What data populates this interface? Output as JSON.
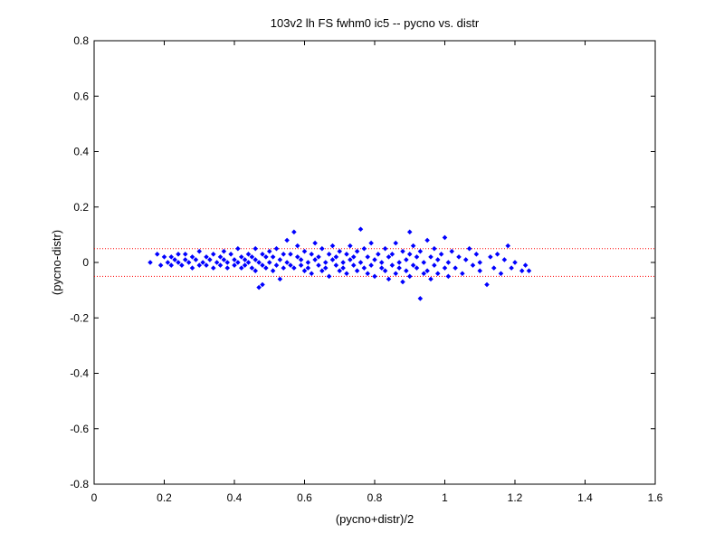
{
  "chart_data": {
    "type": "scatter",
    "title": "103v2 lh FS fwhm0 ic5 -- pycno vs. distr",
    "xlabel": "(pycno+distr)/2",
    "ylabel": "(pycno-distr)",
    "xlim": [
      0,
      1.6
    ],
    "ylim": [
      -0.8,
      0.8
    ],
    "xticks": [
      0,
      0.2,
      0.4,
      0.6,
      0.8,
      1,
      1.2,
      1.4,
      1.6
    ],
    "yticks": [
      -0.8,
      -0.6,
      -0.4,
      -0.2,
      0,
      0.2,
      0.4,
      0.6,
      0.8
    ],
    "xtick_labels": [
      "0",
      "0.2",
      "0.4",
      "0.6",
      "0.8",
      "1",
      "1.2",
      "1.4",
      "1.6"
    ],
    "ytick_labels": [
      "-0.8",
      "-0.6",
      "-0.4",
      "-0.2",
      "0",
      "0.2",
      "0.4",
      "0.6",
      "0.8"
    ],
    "grid": false,
    "reference_lines": [
      {
        "y": 0.05,
        "color": "#ff0000",
        "style": "dotted"
      },
      {
        "y": -0.05,
        "color": "#ff0000",
        "style": "dotted"
      }
    ],
    "series": [
      {
        "color": "#0000ff",
        "marker": "diamond",
        "points": [
          [
            0.16,
            0.0
          ],
          [
            0.18,
            0.03
          ],
          [
            0.19,
            -0.01
          ],
          [
            0.2,
            0.02
          ],
          [
            0.21,
            0.0
          ],
          [
            0.22,
            -0.01
          ],
          [
            0.22,
            0.02
          ],
          [
            0.23,
            0.01
          ],
          [
            0.24,
            0.0
          ],
          [
            0.24,
            0.03
          ],
          [
            0.25,
            -0.01
          ],
          [
            0.26,
            0.01
          ],
          [
            0.26,
            0.03
          ],
          [
            0.27,
            0.0
          ],
          [
            0.28,
            -0.02
          ],
          [
            0.28,
            0.02
          ],
          [
            0.29,
            0.01
          ],
          [
            0.3,
            0.04
          ],
          [
            0.3,
            -0.01
          ],
          [
            0.31,
            0.0
          ],
          [
            0.32,
            0.02
          ],
          [
            0.32,
            -0.01
          ],
          [
            0.33,
            0.01
          ],
          [
            0.34,
            0.03
          ],
          [
            0.34,
            -0.02
          ],
          [
            0.35,
            0.0
          ],
          [
            0.36,
            0.02
          ],
          [
            0.36,
            -0.01
          ],
          [
            0.37,
            0.04
          ],
          [
            0.37,
            0.01
          ],
          [
            0.38,
            -0.02
          ],
          [
            0.38,
            0.0
          ],
          [
            0.39,
            0.03
          ],
          [
            0.4,
            0.01
          ],
          [
            0.4,
            -0.01
          ],
          [
            0.41,
            0.05
          ],
          [
            0.41,
            0.0
          ],
          [
            0.42,
            -0.02
          ],
          [
            0.42,
            0.02
          ],
          [
            0.43,
            0.01
          ],
          [
            0.43,
            -0.01
          ],
          [
            0.44,
            0.03
          ],
          [
            0.44,
            0.0
          ],
          [
            0.45,
            -0.02
          ],
          [
            0.45,
            0.02
          ],
          [
            0.46,
            0.05
          ],
          [
            0.46,
            0.01
          ],
          [
            0.46,
            -0.03
          ],
          [
            0.47,
            0.0
          ],
          [
            0.47,
            -0.09
          ],
          [
            0.48,
            0.03
          ],
          [
            0.48,
            -0.01
          ],
          [
            0.48,
            -0.08
          ],
          [
            0.49,
            0.02
          ],
          [
            0.49,
            -0.02
          ],
          [
            0.5,
            0.04
          ],
          [
            0.5,
            0.0
          ],
          [
            0.51,
            -0.03
          ],
          [
            0.51,
            0.02
          ],
          [
            0.52,
            -0.01
          ],
          [
            0.52,
            0.05
          ],
          [
            0.53,
            0.01
          ],
          [
            0.53,
            -0.06
          ],
          [
            0.54,
            0.03
          ],
          [
            0.54,
            -0.02
          ],
          [
            0.55,
            0.0
          ],
          [
            0.55,
            0.08
          ],
          [
            0.56,
            -0.01
          ],
          [
            0.56,
            0.03
          ],
          [
            0.57,
            0.11
          ],
          [
            0.57,
            -0.02
          ],
          [
            0.58,
            0.02
          ],
          [
            0.58,
            0.06
          ],
          [
            0.59,
            -0.01
          ],
          [
            0.59,
            0.01
          ],
          [
            0.6,
            -0.03
          ],
          [
            0.6,
            0.04
          ],
          [
            0.61,
            0.0
          ],
          [
            0.61,
            -0.02
          ],
          [
            0.62,
            0.03
          ],
          [
            0.62,
            -0.04
          ],
          [
            0.63,
            0.01
          ],
          [
            0.63,
            0.07
          ],
          [
            0.64,
            -0.01
          ],
          [
            0.64,
            0.02
          ],
          [
            0.65,
            -0.03
          ],
          [
            0.65,
            0.05
          ],
          [
            0.66,
            0.0
          ],
          [
            0.66,
            -0.02
          ],
          [
            0.67,
            0.03
          ],
          [
            0.67,
            -0.05
          ],
          [
            0.68,
            0.01
          ],
          [
            0.68,
            0.06
          ],
          [
            0.69,
            -0.01
          ],
          [
            0.69,
            0.02
          ],
          [
            0.7,
            -0.03
          ],
          [
            0.7,
            0.04
          ],
          [
            0.71,
            0.0
          ],
          [
            0.71,
            -0.02
          ],
          [
            0.72,
            0.03
          ],
          [
            0.72,
            -0.04
          ],
          [
            0.73,
            0.01
          ],
          [
            0.73,
            0.06
          ],
          [
            0.74,
            -0.01
          ],
          [
            0.74,
            0.02
          ],
          [
            0.75,
            -0.03
          ],
          [
            0.75,
            0.04
          ],
          [
            0.76,
            0.12
          ],
          [
            0.76,
            0.0
          ],
          [
            0.77,
            -0.02
          ],
          [
            0.77,
            0.05
          ],
          [
            0.78,
            -0.04
          ],
          [
            0.78,
            0.02
          ],
          [
            0.79,
            0.07
          ],
          [
            0.79,
            -0.01
          ],
          [
            0.8,
            0.01
          ],
          [
            0.8,
            -0.05
          ],
          [
            0.81,
            0.03
          ],
          [
            0.82,
            -0.02
          ],
          [
            0.82,
            0.0
          ],
          [
            0.83,
            0.05
          ],
          [
            0.83,
            -0.03
          ],
          [
            0.84,
            0.02
          ],
          [
            0.84,
            -0.06
          ],
          [
            0.85,
            -0.01
          ],
          [
            0.85,
            0.03
          ],
          [
            0.86,
            0.07
          ],
          [
            0.86,
            -0.04
          ],
          [
            0.87,
            0.0
          ],
          [
            0.87,
            -0.02
          ],
          [
            0.88,
            0.04
          ],
          [
            0.88,
            -0.07
          ],
          [
            0.89,
            0.01
          ],
          [
            0.89,
            -0.03
          ],
          [
            0.9,
            0.11
          ],
          [
            0.9,
            0.03
          ],
          [
            0.9,
            -0.05
          ],
          [
            0.91,
            -0.01
          ],
          [
            0.91,
            0.06
          ],
          [
            0.92,
            -0.02
          ],
          [
            0.92,
            0.02
          ],
          [
            0.93,
            -0.13
          ],
          [
            0.93,
            0.04
          ],
          [
            0.94,
            -0.04
          ],
          [
            0.94,
            0.0
          ],
          [
            0.95,
            0.08
          ],
          [
            0.95,
            -0.03
          ],
          [
            0.96,
            0.02
          ],
          [
            0.96,
            -0.06
          ],
          [
            0.97,
            0.05
          ],
          [
            0.97,
            -0.01
          ],
          [
            0.98,
            0.01
          ],
          [
            0.98,
            -0.04
          ],
          [
            0.99,
            0.03
          ],
          [
            1.0,
            -0.02
          ],
          [
            1.0,
            0.09
          ],
          [
            1.01,
            0.0
          ],
          [
            1.01,
            -0.05
          ],
          [
            1.02,
            0.04
          ],
          [
            1.03,
            -0.02
          ],
          [
            1.04,
            0.02
          ],
          [
            1.05,
            -0.04
          ],
          [
            1.06,
            0.01
          ],
          [
            1.07,
            0.05
          ],
          [
            1.08,
            -0.01
          ],
          [
            1.09,
            0.03
          ],
          [
            1.1,
            -0.03
          ],
          [
            1.1,
            0.0
          ],
          [
            1.12,
            -0.08
          ],
          [
            1.13,
            0.02
          ],
          [
            1.14,
            -0.02
          ],
          [
            1.15,
            0.03
          ],
          [
            1.16,
            -0.04
          ],
          [
            1.17,
            0.01
          ],
          [
            1.18,
            0.06
          ],
          [
            1.19,
            -0.02
          ],
          [
            1.2,
            0.0
          ],
          [
            1.22,
            -0.03
          ],
          [
            1.23,
            -0.01
          ],
          [
            1.24,
            -0.03
          ]
        ]
      }
    ]
  }
}
